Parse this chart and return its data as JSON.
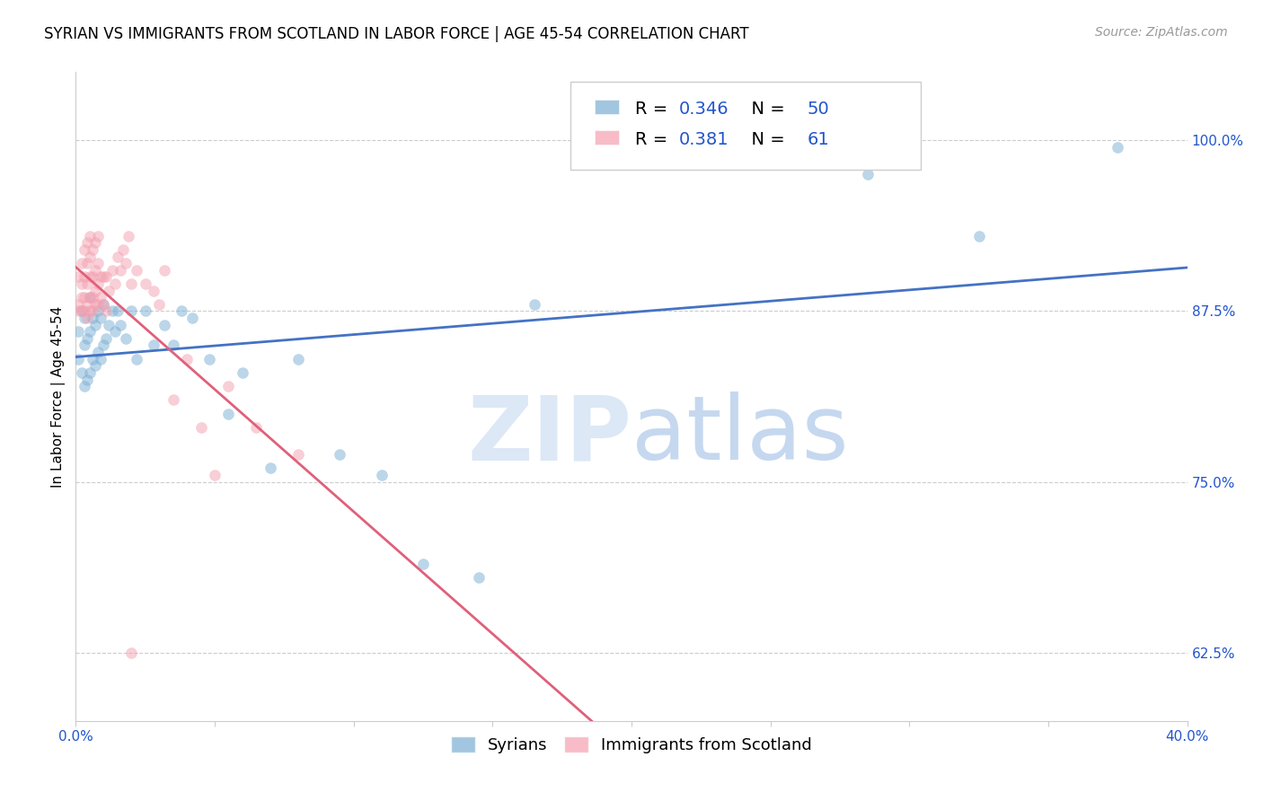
{
  "title": "SYRIAN VS IMMIGRANTS FROM SCOTLAND IN LABOR FORCE | AGE 45-54 CORRELATION CHART",
  "source": "Source: ZipAtlas.com",
  "ylabel": "In Labor Force | Age 45-54",
  "xlim": [
    0.0,
    0.4
  ],
  "ylim": [
    0.575,
    1.05
  ],
  "xticks": [
    0.0,
    0.05,
    0.1,
    0.15,
    0.2,
    0.25,
    0.3,
    0.35,
    0.4
  ],
  "xticklabels": [
    "0.0%",
    "",
    "",
    "",
    "",
    "",
    "",
    "",
    "40.0%"
  ],
  "ytick_positions": [
    0.625,
    0.75,
    0.875,
    1.0
  ],
  "yticklabels": [
    "62.5%",
    "75.0%",
    "87.5%",
    "100.0%"
  ],
  "syrians_x": [
    0.001,
    0.001,
    0.002,
    0.002,
    0.003,
    0.003,
    0.003,
    0.004,
    0.004,
    0.005,
    0.005,
    0.005,
    0.006,
    0.006,
    0.007,
    0.007,
    0.008,
    0.008,
    0.009,
    0.009,
    0.01,
    0.01,
    0.011,
    0.012,
    0.013,
    0.014,
    0.015,
    0.016,
    0.018,
    0.02,
    0.022,
    0.025,
    0.028,
    0.032,
    0.035,
    0.038,
    0.042,
    0.048,
    0.055,
    0.06,
    0.07,
    0.08,
    0.095,
    0.11,
    0.125,
    0.145,
    0.165,
    0.285,
    0.325,
    0.375
  ],
  "syrians_y": [
    0.84,
    0.86,
    0.83,
    0.875,
    0.82,
    0.85,
    0.87,
    0.825,
    0.855,
    0.83,
    0.86,
    0.885,
    0.84,
    0.87,
    0.835,
    0.865,
    0.845,
    0.875,
    0.84,
    0.87,
    0.85,
    0.88,
    0.855,
    0.865,
    0.875,
    0.86,
    0.875,
    0.865,
    0.855,
    0.875,
    0.84,
    0.875,
    0.85,
    0.865,
    0.85,
    0.875,
    0.87,
    0.84,
    0.8,
    0.83,
    0.76,
    0.84,
    0.77,
    0.755,
    0.69,
    0.68,
    0.88,
    0.975,
    0.93,
    0.995
  ],
  "scotland_x": [
    0.001,
    0.001,
    0.001,
    0.002,
    0.002,
    0.002,
    0.002,
    0.003,
    0.003,
    0.003,
    0.003,
    0.004,
    0.004,
    0.004,
    0.004,
    0.004,
    0.005,
    0.005,
    0.005,
    0.005,
    0.005,
    0.006,
    0.006,
    0.006,
    0.006,
    0.007,
    0.007,
    0.007,
    0.007,
    0.008,
    0.008,
    0.008,
    0.008,
    0.009,
    0.009,
    0.01,
    0.01,
    0.011,
    0.011,
    0.012,
    0.013,
    0.014,
    0.015,
    0.016,
    0.017,
    0.018,
    0.019,
    0.02,
    0.022,
    0.025,
    0.028,
    0.03,
    0.032,
    0.035,
    0.04,
    0.045,
    0.05,
    0.055,
    0.065,
    0.08,
    0.02
  ],
  "scotland_y": [
    0.875,
    0.88,
    0.9,
    0.875,
    0.885,
    0.895,
    0.91,
    0.875,
    0.885,
    0.9,
    0.92,
    0.87,
    0.88,
    0.895,
    0.91,
    0.925,
    0.875,
    0.885,
    0.9,
    0.915,
    0.93,
    0.875,
    0.885,
    0.9,
    0.92,
    0.88,
    0.89,
    0.905,
    0.925,
    0.88,
    0.895,
    0.91,
    0.93,
    0.885,
    0.9,
    0.88,
    0.9,
    0.875,
    0.9,
    0.89,
    0.905,
    0.895,
    0.915,
    0.905,
    0.92,
    0.91,
    0.93,
    0.895,
    0.905,
    0.895,
    0.89,
    0.88,
    0.905,
    0.81,
    0.84,
    0.79,
    0.755,
    0.82,
    0.79,
    0.77,
    0.625
  ],
  "syrians_color": "#7bafd4",
  "scotland_color": "#f4a0b0",
  "syrians_line_color": "#4472c4",
  "scotland_line_color": "#e0607a",
  "r_syrians": 0.346,
  "n_syrians": 50,
  "r_scotland": 0.381,
  "n_scotland": 61,
  "marker_size": 75,
  "marker_alpha": 0.5,
  "background_color": "#ffffff",
  "grid_color": "#cccccc",
  "title_fontsize": 12,
  "axis_label_fontsize": 11,
  "tick_fontsize": 11,
  "legend_fontsize": 13,
  "watermark_zip_color": "#dce8f5",
  "watermark_atlas_color": "#c5d8ef",
  "watermark_fontsize": 72,
  "source_fontsize": 10
}
